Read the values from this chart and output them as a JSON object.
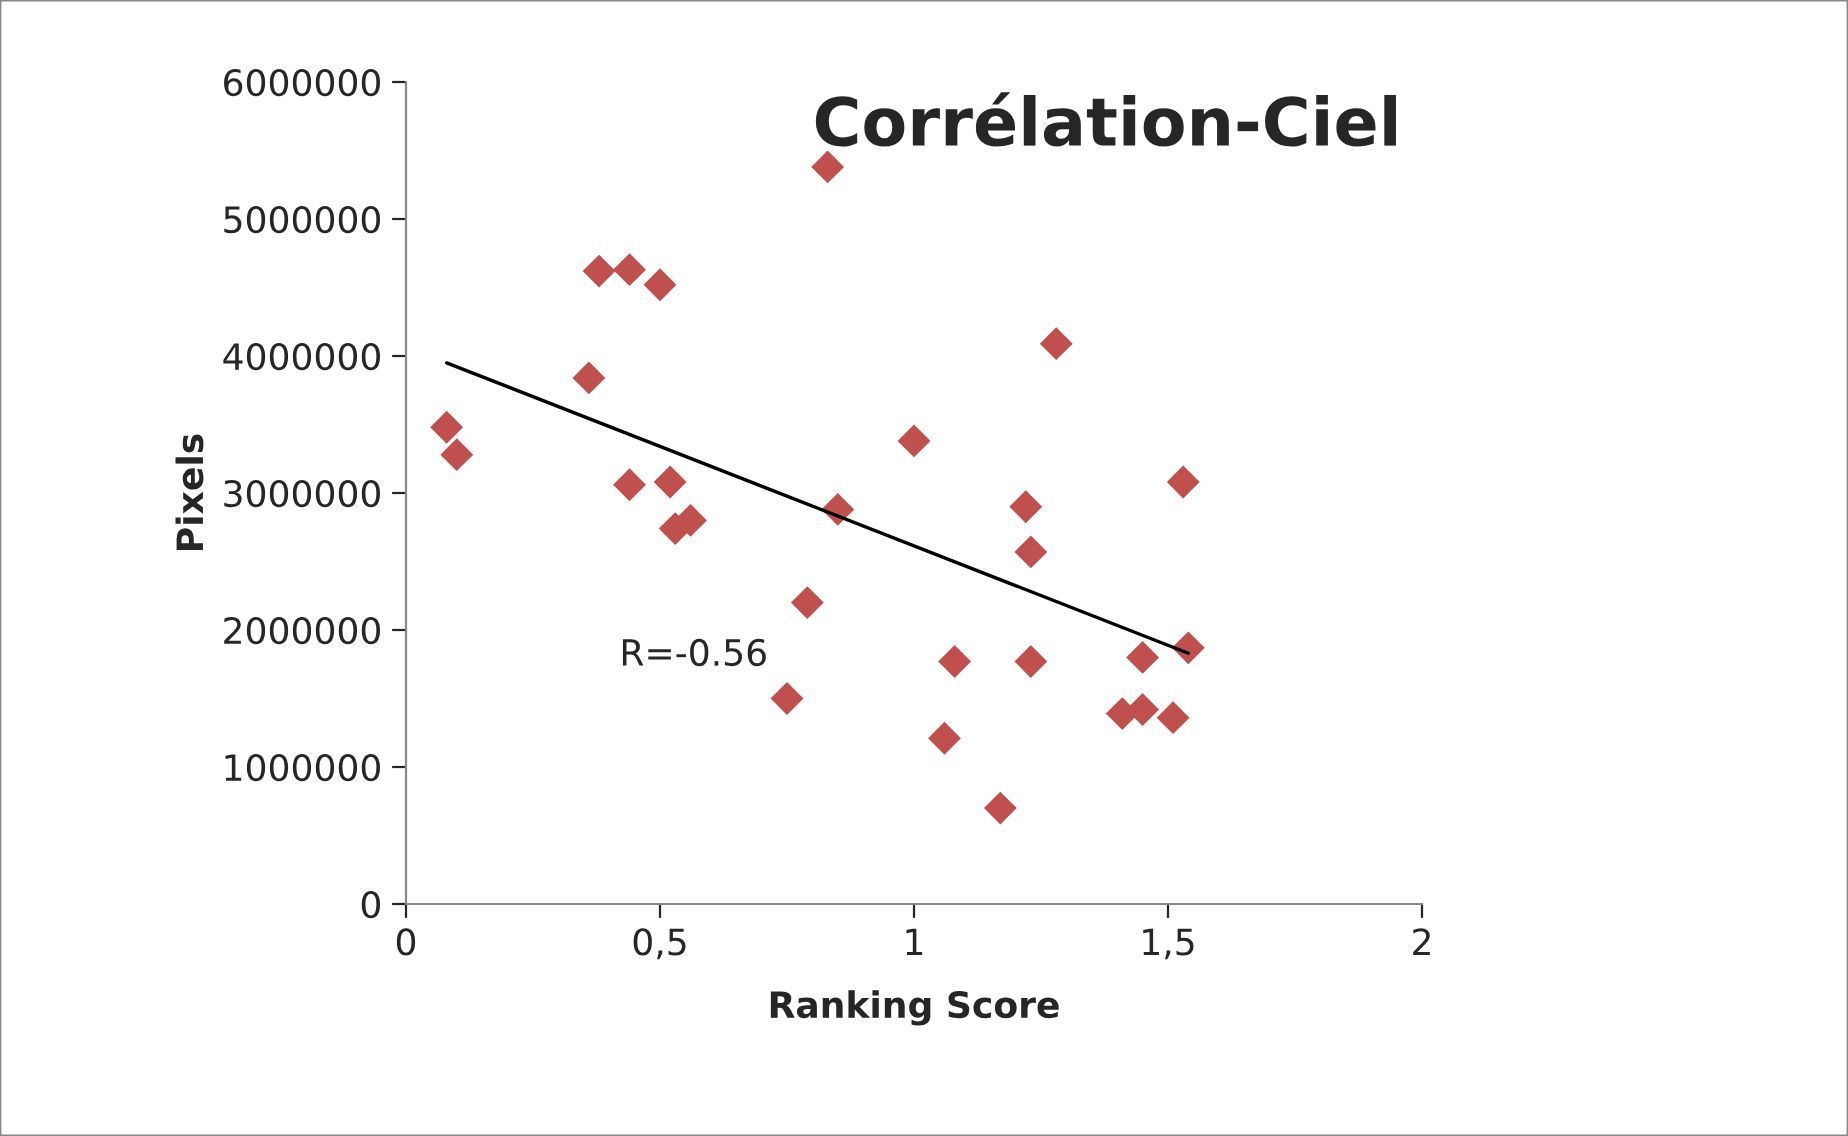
{
  "chart_data": {
    "type": "scatter",
    "title": "Corrélation-Ciel",
    "xlabel": "Ranking Score",
    "ylabel": "Pixels",
    "xlim": [
      0,
      2
    ],
    "xticks": [
      0,
      {
        "value": 0.5,
        "label": "0,5"
      },
      1,
      {
        "value": 1.5,
        "label": "1,5"
      },
      2
    ],
    "ylim": [
      0,
      6000000
    ],
    "yticks": [
      0,
      1000000,
      2000000,
      3000000,
      4000000,
      5000000,
      6000000
    ],
    "grid": false,
    "legend": false,
    "marker": "diamond",
    "series": [
      {
        "color": "#c0504d",
        "x": [
          0.08,
          0.1,
          0.36,
          0.38,
          0.44,
          0.44,
          0.5,
          0.52,
          0.53,
          0.56,
          0.75,
          0.79,
          0.83,
          0.85,
          1.0,
          1.06,
          1.08,
          1.17,
          1.22,
          1.23,
          1.23,
          1.28,
          1.41,
          1.45,
          1.45,
          1.51,
          1.53,
          1.54
        ],
        "values": [
          3480000,
          3280000,
          3840000,
          4620000,
          4630000,
          3060000,
          4520000,
          3080000,
          2740000,
          2800000,
          1500000,
          2200000,
          5380000,
          2880000,
          3380000,
          1210000,
          1770000,
          700000,
          2900000,
          2570000,
          1770000,
          4090000,
          1390000,
          1800000,
          1420000,
          1360000,
          3080000,
          1870000
        ]
      },
      {
        "type": "line",
        "color": "#000000",
        "marker": "none",
        "x": [
          0.08,
          1.54
        ],
        "values": [
          3950000,
          1830000
        ]
      }
    ],
    "annotations": [
      "R=-0.56"
    ]
  }
}
